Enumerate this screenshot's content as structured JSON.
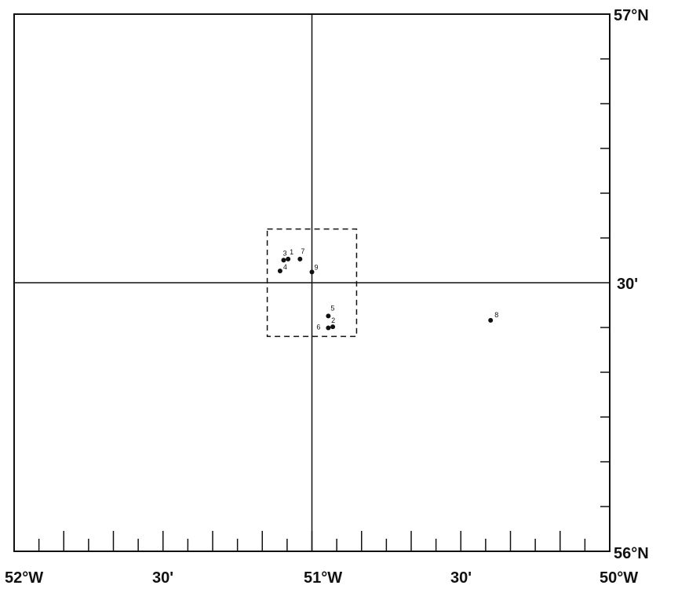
{
  "map": {
    "labels": {
      "lat_top": "57°N",
      "lat_mid": "30'",
      "lat_bottom": "56°N",
      "lon_left": "52°W",
      "lon_30a": "30'",
      "lon_mid": "51°W",
      "lon_30b": "30'",
      "lon_right": "50°W"
    },
    "lon_range": [
      -52,
      -50
    ],
    "lat_range": [
      56,
      57
    ],
    "crosshair": {
      "lon": -51,
      "lat": 56.5
    },
    "inset_box": {
      "lon_min": -51.15,
      "lon_max": -50.85,
      "lat_min": 56.4,
      "lat_max": 56.6
    },
    "stations": [
      {
        "id": "1",
        "lon": -51.08,
        "lat": 56.544
      },
      {
        "id": "2",
        "lon": -50.93,
        "lat": 56.418
      },
      {
        "id": "3",
        "lon": -51.095,
        "lat": 56.542
      },
      {
        "id": "4",
        "lon": -51.107,
        "lat": 56.522
      },
      {
        "id": "5",
        "lon": -50.945,
        "lat": 56.438
      },
      {
        "id": "6",
        "lon": -50.945,
        "lat": 56.416
      },
      {
        "id": "7",
        "lon": -51.04,
        "lat": 56.544
      },
      {
        "id": "8",
        "lon": -50.4,
        "lat": 56.43
      },
      {
        "id": "9",
        "lon": -51.0,
        "lat": 56.52
      }
    ],
    "ink_color": "#111111"
  }
}
